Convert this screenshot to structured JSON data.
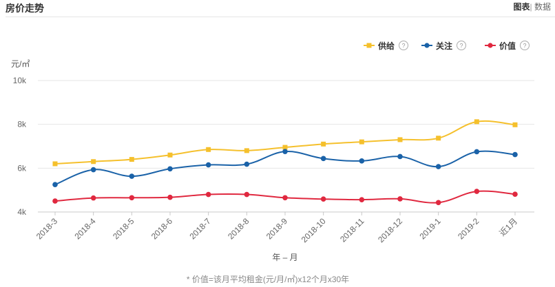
{
  "header": {
    "title": "房价走势",
    "tab_chart": "图表",
    "tab_separator": "|",
    "tab_data": "数据"
  },
  "chart_data": {
    "type": "line",
    "title": "",
    "xlabel": "年 – 月",
    "ylabel": "元/㎡",
    "ylim": [
      4000,
      10000
    ],
    "yticks": [
      4000,
      6000,
      8000,
      10000
    ],
    "ytick_labels": [
      "4k",
      "6k",
      "8k",
      "10k"
    ],
    "grid": true,
    "legend_position": "top-right",
    "categories": [
      "2018-3",
      "2018-4",
      "2018-5",
      "2018-6",
      "2018-7",
      "2018-8",
      "2018-9",
      "2018-10",
      "2018-11",
      "2018-12",
      "2019-1",
      "2019-2",
      "近1月"
    ],
    "series": [
      {
        "name": "供给",
        "color": "#f5c02c",
        "values": [
          6200,
          6300,
          6400,
          6600,
          6850,
          6800,
          6950,
          7100,
          7200,
          7300,
          7370,
          8120,
          7980
        ]
      },
      {
        "name": "关注",
        "color": "#1a62a8",
        "values": [
          5250,
          5930,
          5630,
          5970,
          6150,
          6180,
          6760,
          6440,
          6330,
          6530,
          6070,
          6750,
          6620
        ]
      },
      {
        "name": "价值",
        "color": "#e0283f",
        "values": [
          4500,
          4640,
          4650,
          4670,
          4800,
          4800,
          4650,
          4590,
          4560,
          4600,
          4430,
          4940,
          4810
        ]
      }
    ],
    "legend_help_icon": "question-circle-icon",
    "footnote": "* 价值=该月平均租金(元/月/㎡)x12个月x30年"
  }
}
